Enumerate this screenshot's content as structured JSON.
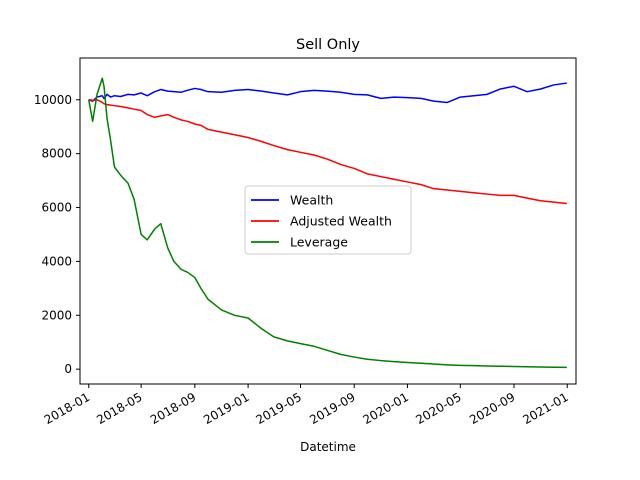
{
  "chart_data": {
    "type": "line",
    "title": "Sell Only",
    "xlabel": "Datetime",
    "ylabel": "",
    "xlim": [
      "2017-12-12",
      "2021-01-21"
    ],
    "ylim": [
      -550,
      11550
    ],
    "x_ticks": [
      "2018-01",
      "2018-05",
      "2018-09",
      "2019-01",
      "2019-05",
      "2019-09",
      "2020-01",
      "2020-05",
      "2020-09",
      "2021-01"
    ],
    "y_ticks": [
      0,
      2000,
      4000,
      6000,
      8000,
      10000
    ],
    "grid": false,
    "legend_position": "center",
    "x": [
      "2018-01-01",
      "2018-01-10",
      "2018-01-20",
      "2018-02-01",
      "2018-02-05",
      "2018-02-12",
      "2018-02-20",
      "2018-03-01",
      "2018-03-15",
      "2018-04-01",
      "2018-04-15",
      "2018-05-01",
      "2018-05-15",
      "2018-06-01",
      "2018-06-15",
      "2018-07-01",
      "2018-07-15",
      "2018-08-01",
      "2018-08-15",
      "2018-09-01",
      "2018-09-15",
      "2018-10-01",
      "2018-11-01",
      "2018-12-01",
      "2019-01-01",
      "2019-02-01",
      "2019-03-01",
      "2019-04-01",
      "2019-05-01",
      "2019-06-01",
      "2019-07-01",
      "2019-08-01",
      "2019-09-01",
      "2019-10-01",
      "2019-11-01",
      "2019-12-01",
      "2020-01-01",
      "2020-02-01",
      "2020-03-01",
      "2020-04-01",
      "2020-05-01",
      "2020-06-01",
      "2020-07-01",
      "2020-08-01",
      "2020-09-01",
      "2020-10-01",
      "2020-11-01",
      "2020-12-01",
      "2020-12-31"
    ],
    "series": [
      {
        "name": "Wealth",
        "color": "#0000ff",
        "values": [
          10000,
          9950,
          10100,
          10150,
          10050,
          10200,
          10100,
          10150,
          10120,
          10200,
          10180,
          10250,
          10150,
          10300,
          10380,
          10320,
          10300,
          10280,
          10350,
          10420,
          10380,
          10300,
          10280,
          10350,
          10380,
          10320,
          10250,
          10180,
          10300,
          10350,
          10320,
          10280,
          10200,
          10180,
          10050,
          10100,
          10080,
          10050,
          9950,
          9900,
          10100,
          10150,
          10200,
          10400,
          10500,
          10300,
          10400,
          10550,
          10620
        ]
      },
      {
        "name": "Adjusted Wealth",
        "color": "#ff0000",
        "values": [
          10000,
          9980,
          10000,
          9900,
          9850,
          9820,
          9800,
          9780,
          9750,
          9700,
          9650,
          9600,
          9450,
          9350,
          9400,
          9450,
          9350,
          9250,
          9200,
          9100,
          9050,
          8900,
          8800,
          8700,
          8600,
          8450,
          8300,
          8150,
          8050,
          7950,
          7800,
          7600,
          7450,
          7250,
          7150,
          7050,
          6950,
          6850,
          6700,
          6650,
          6600,
          6550,
          6500,
          6450,
          6450,
          6350,
          6250,
          6200,
          6150
        ]
      },
      {
        "name": "Leverage",
        "color": "#008000",
        "values": [
          10000,
          9200,
          10200,
          10800,
          10500,
          9300,
          8500,
          7500,
          7200,
          6900,
          6300,
          5000,
          4800,
          5200,
          5400,
          4500,
          4000,
          3700,
          3600,
          3400,
          3000,
          2600,
          2200,
          2000,
          1900,
          1500,
          1200,
          1050,
          950,
          850,
          700,
          550,
          450,
          370,
          320,
          280,
          250,
          220,
          190,
          160,
          140,
          130,
          120,
          110,
          100,
          90,
          80,
          70,
          65
        ]
      }
    ]
  }
}
